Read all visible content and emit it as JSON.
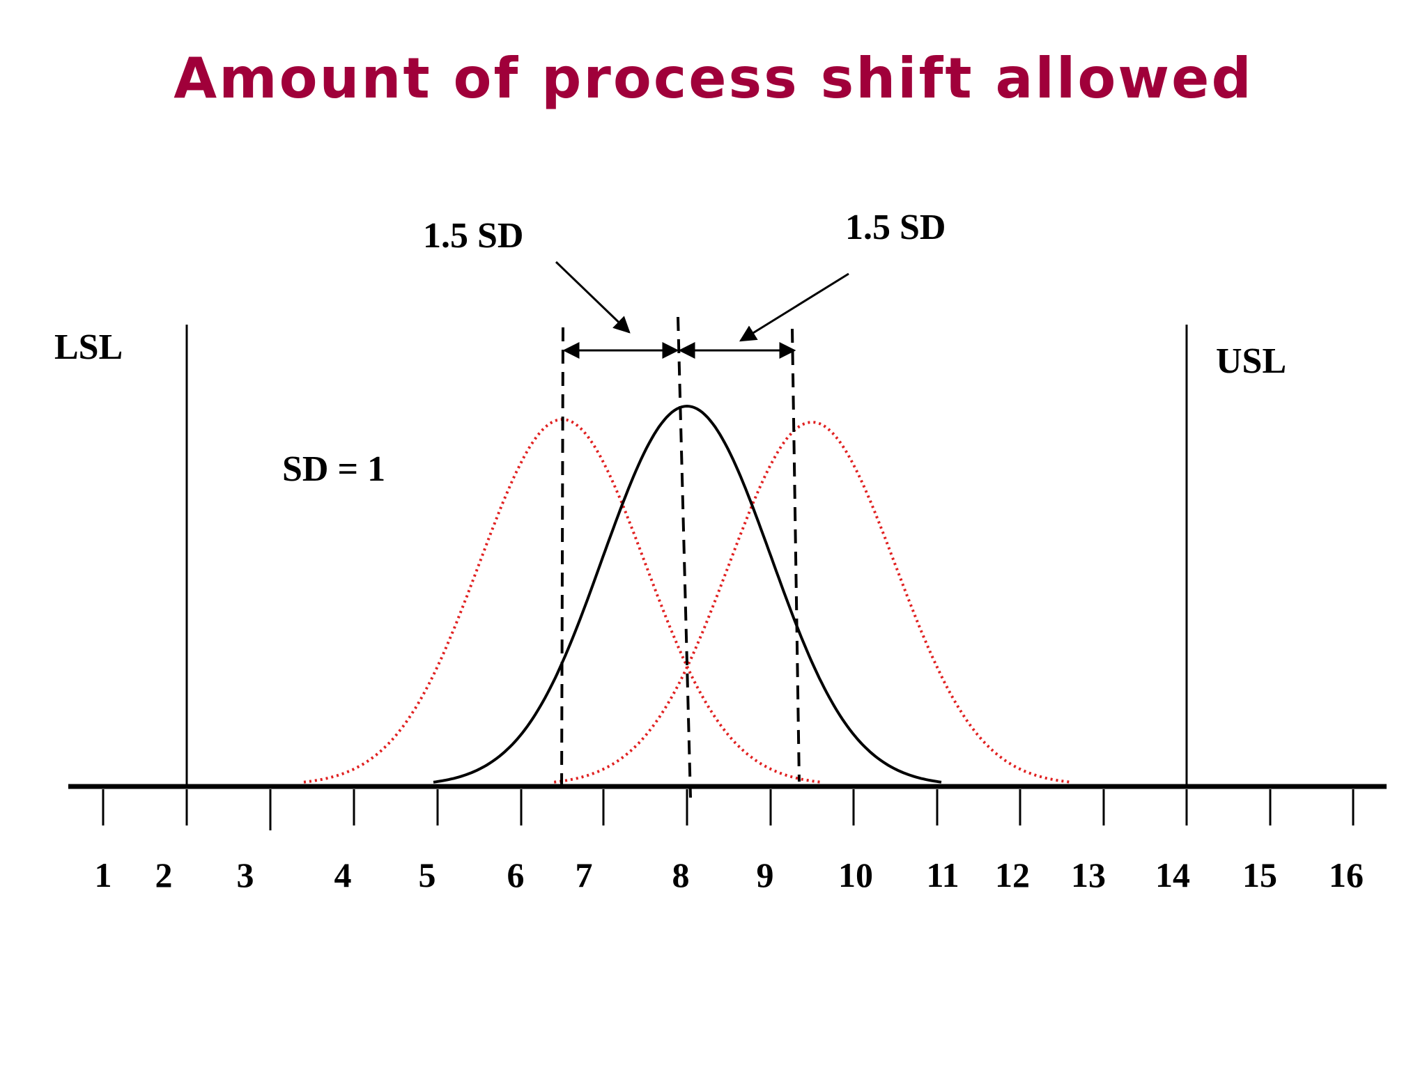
{
  "slide": {
    "title": "Amount of process shift allowed",
    "title_color": "#a0003a"
  },
  "labels": {
    "lsl": "LSL",
    "usl": "USL",
    "sd": "SD = 1",
    "shift_left": "1.5 SD",
    "shift_right": "1.5 SD"
  },
  "axis": {
    "ticks": [
      "1",
      "2",
      "3",
      "4",
      "5",
      "6",
      "7",
      "8",
      "9",
      "10",
      "11",
      "12",
      "13",
      "14",
      "15",
      "16"
    ]
  },
  "curves": {
    "center": {
      "mean": 8,
      "sd": 1,
      "style": "solid",
      "color": "#000000"
    },
    "shifted_left": {
      "mean": 6.5,
      "sd": 1,
      "style": "dotted",
      "color": "#e02020"
    },
    "shifted_right": {
      "mean": 9.5,
      "sd": 1,
      "style": "dotted",
      "color": "#e02020"
    }
  },
  "limits": {
    "lsl": 2,
    "usl": 14
  }
}
